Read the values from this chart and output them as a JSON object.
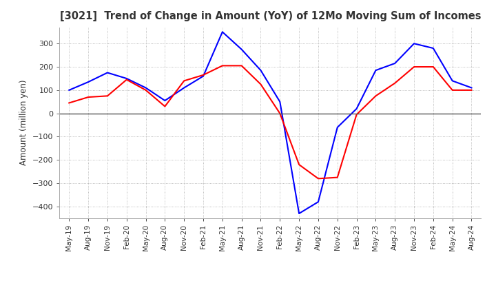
{
  "title": "[3021]  Trend of Change in Amount (YoY) of 12Mo Moving Sum of Incomes",
  "ylabel": "Amount (million yen)",
  "ylim": [
    -450,
    370
  ],
  "yticks": [
    -400,
    -300,
    -200,
    -100,
    0,
    100,
    200,
    300
  ],
  "ordinary_income_color": "#0000ff",
  "net_income_color": "#ff0000",
  "x_labels": [
    "May-19",
    "Aug-19",
    "Nov-19",
    "Feb-20",
    "May-20",
    "Aug-20",
    "Nov-20",
    "Feb-21",
    "May-21",
    "Aug-21",
    "Nov-21",
    "Feb-22",
    "May-22",
    "Aug-22",
    "Nov-22",
    "Feb-23",
    "May-23",
    "Aug-23",
    "Nov-23",
    "Feb-24",
    "May-24",
    "Aug-24"
  ],
  "ordinary_income": [
    100,
    135,
    175,
    150,
    110,
    55,
    110,
    160,
    350,
    275,
    185,
    50,
    -430,
    -380,
    -60,
    20,
    185,
    215,
    300,
    280,
    140,
    110
  ],
  "net_income": [
    45,
    70,
    75,
    145,
    100,
    30,
    140,
    165,
    205,
    205,
    125,
    0,
    -220,
    -280,
    -275,
    -5,
    75,
    130,
    200,
    200,
    100,
    100
  ]
}
